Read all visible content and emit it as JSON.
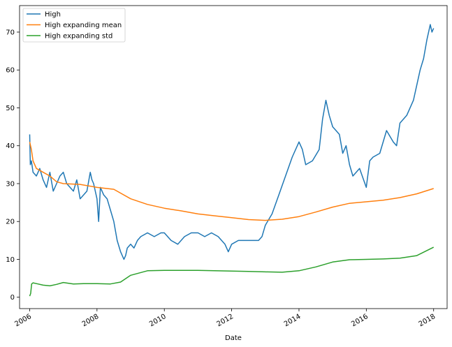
{
  "chart_data": {
    "type": "line",
    "xlabel": "Date",
    "ylabel": "",
    "xlim": [
      2005.7,
      2018.4
    ],
    "ylim": [
      -3,
      77
    ],
    "x_ticks": [
      {
        "value": 2006,
        "label": "2006"
      },
      {
        "value": 2008,
        "label": "2008"
      },
      {
        "value": 2010,
        "label": "2010"
      },
      {
        "value": 2012,
        "label": "2012"
      },
      {
        "value": 2014,
        "label": "2014"
      },
      {
        "value": 2016,
        "label": "2016"
      },
      {
        "value": 2018,
        "label": "2018"
      }
    ],
    "y_ticks": [
      {
        "value": 0,
        "label": "0"
      },
      {
        "value": 10,
        "label": "10"
      },
      {
        "value": 20,
        "label": "20"
      },
      {
        "value": 30,
        "label": "30"
      },
      {
        "value": 40,
        "label": "40"
      },
      {
        "value": 50,
        "label": "50"
      },
      {
        "value": 60,
        "label": "60"
      },
      {
        "value": 70,
        "label": "70"
      }
    ],
    "grid": false,
    "legend": "upper-left",
    "series": [
      {
        "name": "High",
        "color": "#1f77b4",
        "x": [
          2006.0,
          2006.02,
          2006.05,
          2006.1,
          2006.2,
          2006.3,
          2006.4,
          2006.5,
          2006.6,
          2006.7,
          2006.8,
          2006.9,
          2007.0,
          2007.1,
          2007.2,
          2007.3,
          2007.4,
          2007.5,
          2007.6,
          2007.7,
          2007.8,
          2007.85,
          2007.9,
          2008.0,
          2008.05,
          2008.1,
          2008.2,
          2008.3,
          2008.4,
          2008.5,
          2008.6,
          2008.7,
          2008.8,
          2008.85,
          2008.9,
          2009.0,
          2009.1,
          2009.2,
          2009.3,
          2009.5,
          2009.7,
          2009.9,
          2010.0,
          2010.2,
          2010.4,
          2010.6,
          2010.8,
          2011.0,
          2011.2,
          2011.4,
          2011.6,
          2011.8,
          2011.9,
          2012.0,
          2012.2,
          2012.4,
          2012.6,
          2012.8,
          2012.9,
          2013.0,
          2013.2,
          2013.4,
          2013.6,
          2013.8,
          2014.0,
          2014.1,
          2014.2,
          2014.4,
          2014.6,
          2014.7,
          2014.8,
          2014.9,
          2015.0,
          2015.1,
          2015.2,
          2015.3,
          2015.4,
          2015.5,
          2015.6,
          2015.8,
          2016.0,
          2016.1,
          2016.2,
          2016.4,
          2016.6,
          2016.8,
          2016.9,
          2017.0,
          2017.2,
          2017.4,
          2017.6,
          2017.7,
          2017.8,
          2017.9,
          2017.95,
          2018.0
        ],
        "values": [
          43.0,
          35.0,
          36.0,
          33.0,
          32.0,
          34.0,
          31.0,
          29.0,
          33.0,
          28.0,
          30.0,
          32.0,
          33.0,
          30.0,
          29.0,
          28.0,
          31.0,
          26.0,
          27.0,
          28.0,
          33.0,
          31.0,
          30.0,
          26.0,
          20.0,
          29.0,
          27.0,
          26.0,
          23.0,
          20.0,
          15.0,
          12.0,
          10.0,
          11.0,
          13.0,
          14.0,
          13.0,
          15.0,
          16.0,
          17.0,
          16.0,
          17.0,
          17.0,
          15.0,
          14.0,
          16.0,
          17.0,
          17.0,
          16.0,
          17.0,
          16.0,
          14.0,
          12.0,
          14.0,
          15.0,
          15.0,
          15.0,
          15.0,
          16.0,
          19.0,
          22.0,
          27.0,
          32.0,
          37.0,
          41.0,
          39.0,
          35.0,
          36.0,
          39.0,
          47.0,
          52.0,
          48.0,
          45.0,
          44.0,
          43.0,
          38.0,
          40.0,
          35.0,
          32.0,
          34.0,
          29.0,
          36.0,
          37.0,
          38.0,
          44.0,
          41.0,
          40.0,
          46.0,
          48.0,
          52.0,
          60.0,
          63.0,
          68.0,
          72.0,
          70.0,
          71.0
        ]
      },
      {
        "name": "High expanding mean",
        "color": "#ff7f0e",
        "x": [
          2006.0,
          2006.05,
          2006.1,
          2006.2,
          2006.4,
          2006.6,
          2006.8,
          2007.0,
          2007.5,
          2008.0,
          2008.5,
          2009.0,
          2009.5,
          2010.0,
          2010.5,
          2011.0,
          2011.5,
          2012.0,
          2012.5,
          2013.0,
          2013.5,
          2014.0,
          2014.5,
          2015.0,
          2015.5,
          2016.0,
          2016.5,
          2017.0,
          2017.5,
          2018.0
        ],
        "values": [
          41.0,
          39.0,
          36.0,
          34.0,
          33.0,
          32.0,
          30.5,
          30.0,
          29.8,
          29.0,
          28.5,
          26.0,
          24.5,
          23.5,
          22.8,
          22.0,
          21.5,
          21.0,
          20.5,
          20.3,
          20.6,
          21.3,
          22.5,
          23.8,
          24.8,
          25.2,
          25.6,
          26.3,
          27.3,
          28.7
        ]
      },
      {
        "name": "High expanding std",
        "color": "#2ca02c",
        "x": [
          2006.0,
          2006.03,
          2006.06,
          2006.1,
          2006.2,
          2006.4,
          2006.6,
          2006.8,
          2007.0,
          2007.3,
          2007.6,
          2008.0,
          2008.4,
          2008.7,
          2009.0,
          2009.5,
          2010.0,
          2010.5,
          2011.0,
          2011.5,
          2012.0,
          2012.5,
          2013.0,
          2013.5,
          2014.0,
          2014.5,
          2015.0,
          2015.5,
          2016.0,
          2016.5,
          2017.0,
          2017.5,
          2018.0
        ],
        "values": [
          0.3,
          1.0,
          3.5,
          3.8,
          3.6,
          3.2,
          3.0,
          3.4,
          3.9,
          3.5,
          3.6,
          3.6,
          3.5,
          4.0,
          5.8,
          7.0,
          7.1,
          7.1,
          7.1,
          7.0,
          6.9,
          6.8,
          6.7,
          6.6,
          7.0,
          8.0,
          9.3,
          9.9,
          10.0,
          10.1,
          10.3,
          11.0,
          13.2
        ]
      }
    ]
  }
}
